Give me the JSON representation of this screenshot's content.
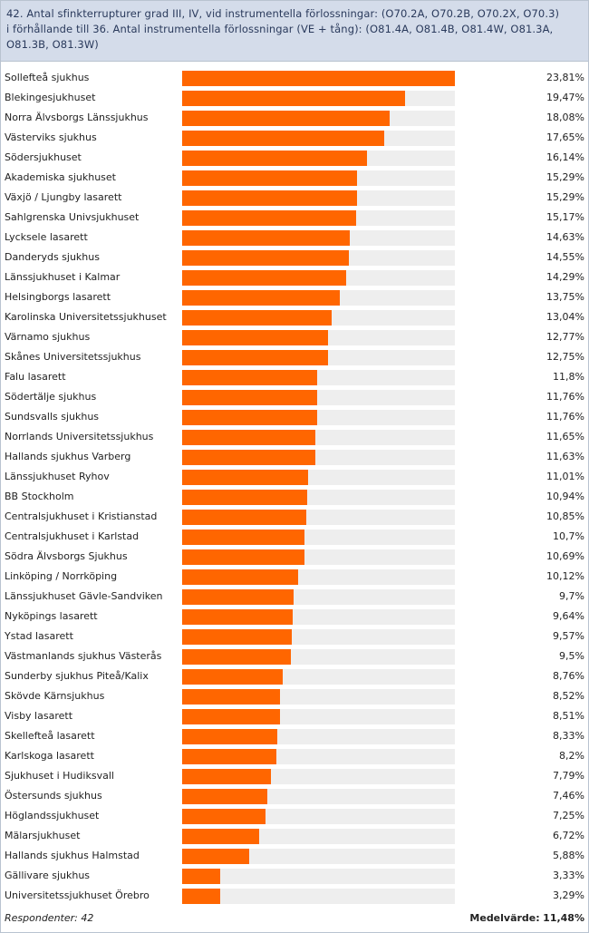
{
  "header": {
    "title": "42. Antal sfinkterrupturer grad III, IV, vid instrumentella förlossningar: (O70.2A, O70.2B, O70.2X, O70.3)\ni förhållande till 36. Antal instrumentella förlossningar (VE + tång):  (O81.4A, O81.4B, O81.4W, O81.3A,\nO81.3B, O81.3W)"
  },
  "chart_data": {
    "type": "bar",
    "orientation": "horizontal",
    "xlim": [
      0,
      23.81
    ],
    "bar_color": "#ff6600",
    "track_color": "#eeeeee",
    "categories": [
      "Sollefteå sjukhus",
      "Blekingesjukhuset",
      "Norra Älvsborgs Länssjukhus",
      "Västerviks sjukhus",
      "Södersjukhuset",
      "Akademiska sjukhuset",
      "Växjö / Ljungby lasarett",
      "Sahlgrenska Univsjukhuset",
      "Lycksele lasarett",
      "Danderyds sjukhus",
      "Länssjukhuset i Kalmar",
      "Helsingborgs lasarett",
      "Karolinska Universitetssjukhuset",
      "Värnamo sjukhus",
      "Skånes Universitetssjukhus",
      "Falu lasarett",
      "Södertälje sjukhus",
      "Sundsvalls sjukhus",
      "Norrlands Universitetssjukhus",
      "Hallands sjukhus Varberg",
      "Länssjukhuset Ryhov",
      "BB Stockholm",
      "Centralsjukhuset i Kristianstad",
      "Centralsjukhuset i Karlstad",
      "Södra Älvsborgs Sjukhus",
      "Linköping / Norrköping",
      "Länssjukhuset Gävle-Sandviken",
      "Nyköpings lasarett",
      "Ystad lasarett",
      "Västmanlands sjukhus Västerås",
      "Sunderby sjukhus Piteå/Kalix",
      "Skövde Kärnsjukhus",
      "Visby lasarett",
      "Skellefteå lasarett",
      "Karlskoga lasarett",
      "Sjukhuset i Hudiksvall",
      "Östersunds sjukhus",
      "Höglandssjukhuset",
      "Mälarsjukhuset",
      "Hallands sjukhus Halmstad",
      "Gällivare sjukhus",
      "Universitetssjukhuset Örebro"
    ],
    "values": [
      23.81,
      19.47,
      18.08,
      17.65,
      16.14,
      15.29,
      15.29,
      15.17,
      14.63,
      14.55,
      14.29,
      13.75,
      13.04,
      12.77,
      12.75,
      11.8,
      11.76,
      11.76,
      11.65,
      11.63,
      11.01,
      10.94,
      10.85,
      10.7,
      10.69,
      10.12,
      9.7,
      9.64,
      9.57,
      9.5,
      8.76,
      8.52,
      8.51,
      8.33,
      8.2,
      7.79,
      7.46,
      7.25,
      6.72,
      5.88,
      3.33,
      3.29
    ],
    "value_labels": [
      "23,81%",
      "19,47%",
      "18,08%",
      "17,65%",
      "16,14%",
      "15,29%",
      "15,29%",
      "15,17%",
      "14,63%",
      "14,55%",
      "14,29%",
      "13,75%",
      "13,04%",
      "12,77%",
      "12,75%",
      "11,8%",
      "11,76%",
      "11,76%",
      "11,65%",
      "11,63%",
      "11,01%",
      "10,94%",
      "10,85%",
      "10,7%",
      "10,69%",
      "10,12%",
      "9,7%",
      "9,64%",
      "9,57%",
      "9,5%",
      "8,76%",
      "8,52%",
      "8,51%",
      "8,33%",
      "8,2%",
      "7,79%",
      "7,46%",
      "7,25%",
      "6,72%",
      "5,88%",
      "3,33%",
      "3,29%"
    ]
  },
  "footer": {
    "respondents": "Respondenter: 42",
    "mean_label": "Medelvärde:",
    "mean_value": "11,48%"
  }
}
